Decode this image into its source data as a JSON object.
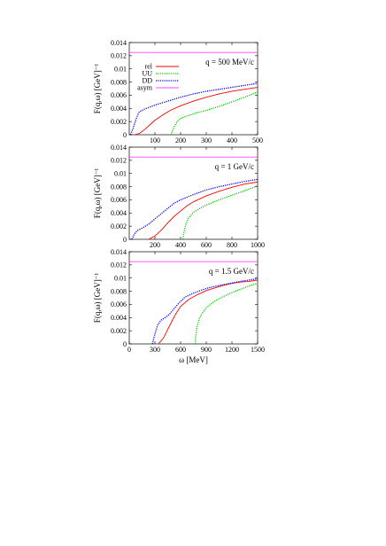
{
  "chart_data": [
    {
      "type": "line",
      "panel_label": "q = 500 MeV/c",
      "xlabel": "",
      "ylabel": "F(q,ω) [GeV]⁻¹",
      "xlim": [
        0,
        500
      ],
      "ylim": [
        0,
        0.014
      ],
      "xticks": [
        100,
        200,
        300,
        400,
        500
      ],
      "yticks": [
        "0",
        "0.002",
        "0.004",
        "0.006",
        "0.008",
        "0.01",
        "0.012",
        "0.014"
      ],
      "legend": "top-left",
      "grid": false,
      "series": [
        {
          "name": "rel",
          "color": "#ff0000",
          "style": "solid",
          "points": [
            [
              20,
              0
            ],
            [
              40,
              0.0002
            ],
            [
              60,
              0.0008
            ],
            [
              80,
              0.0015
            ],
            [
              100,
              0.0022
            ],
            [
              130,
              0.003
            ],
            [
              160,
              0.0037
            ],
            [
              200,
              0.0044
            ],
            [
              250,
              0.0051
            ],
            [
              300,
              0.0057
            ],
            [
              350,
              0.0062
            ],
            [
              400,
              0.0066
            ],
            [
              450,
              0.0069
            ],
            [
              500,
              0.0072
            ]
          ]
        },
        {
          "name": "UU",
          "color": "#00cc00",
          "style": "dotted",
          "points": [
            [
              163,
              0
            ],
            [
              168,
              0.0006
            ],
            [
              175,
              0.0012
            ],
            [
              185,
              0.0019
            ],
            [
              200,
              0.0025
            ],
            [
              230,
              0.0029
            ],
            [
              260,
              0.0033
            ],
            [
              300,
              0.0037
            ],
            [
              350,
              0.0043
            ],
            [
              400,
              0.005
            ],
            [
              450,
              0.0057
            ],
            [
              500,
              0.0065
            ]
          ]
        },
        {
          "name": "DD",
          "color": "#0000ff",
          "style": "dotted",
          "points": [
            [
              5,
              0
            ],
            [
              15,
              0.001
            ],
            [
              25,
              0.0022
            ],
            [
              35,
              0.0032
            ],
            [
              40,
              0.0035
            ],
            [
              60,
              0.0039
            ],
            [
              100,
              0.0045
            ],
            [
              150,
              0.0051
            ],
            [
              200,
              0.0057
            ],
            [
              250,
              0.0062
            ],
            [
              300,
              0.0066
            ],
            [
              350,
              0.0069
            ],
            [
              400,
              0.0072
            ],
            [
              450,
              0.0075
            ],
            [
              500,
              0.0078
            ]
          ]
        },
        {
          "name": "asym",
          "color": "#ff44ff",
          "style": "solid",
          "points": [
            [
              0,
              0.0125
            ],
            [
              500,
              0.0125
            ]
          ]
        }
      ]
    },
    {
      "type": "line",
      "panel_label": "q = 1 GeV/c",
      "xlabel": "",
      "ylabel": "F(q,ω) [GeV]⁻¹",
      "xlim": [
        0,
        1000
      ],
      "ylim": [
        0,
        0.014
      ],
      "xticks": [
        200,
        400,
        600,
        800,
        1000
      ],
      "yticks": [
        "0",
        "0.002",
        "0.004",
        "0.006",
        "0.008",
        "0.01",
        "0.012",
        "0.014"
      ],
      "grid": false,
      "series": [
        {
          "name": "rel",
          "color": "#ff0000",
          "style": "solid",
          "points": [
            [
              150,
              0
            ],
            [
              200,
              0.0005
            ],
            [
              250,
              0.0014
            ],
            [
              300,
              0.0025
            ],
            [
              350,
              0.0035
            ],
            [
              400,
              0.0043
            ],
            [
              450,
              0.0051
            ],
            [
              500,
              0.0057
            ],
            [
              600,
              0.0066
            ],
            [
              700,
              0.0073
            ],
            [
              800,
              0.0079
            ],
            [
              900,
              0.0084
            ],
            [
              1000,
              0.0087
            ]
          ]
        },
        {
          "name": "UU",
          "color": "#00cc00",
          "style": "dotted",
          "points": [
            [
              420,
              0
            ],
            [
              425,
              0.001
            ],
            [
              440,
              0.0022
            ],
            [
              460,
              0.0032
            ],
            [
              500,
              0.0041
            ],
            [
              550,
              0.0047
            ],
            [
              600,
              0.0052
            ],
            [
              650,
              0.0056
            ],
            [
              700,
              0.006
            ],
            [
              800,
              0.0067
            ],
            [
              900,
              0.0074
            ],
            [
              1000,
              0.0081
            ]
          ]
        },
        {
          "name": "DD",
          "color": "#0000ff",
          "style": "dotted",
          "points": [
            [
              20,
              0
            ],
            [
              40,
              0.0008
            ],
            [
              60,
              0.0013
            ],
            [
              80,
              0.0015
            ],
            [
              100,
              0.0017
            ],
            [
              150,
              0.0023
            ],
            [
              200,
              0.0031
            ],
            [
              250,
              0.0039
            ],
            [
              300,
              0.0047
            ],
            [
              350,
              0.0055
            ],
            [
              400,
              0.006
            ],
            [
              500,
              0.0068
            ],
            [
              600,
              0.0075
            ],
            [
              700,
              0.008
            ],
            [
              800,
              0.0084
            ],
            [
              900,
              0.0088
            ],
            [
              1000,
              0.0091
            ]
          ]
        },
        {
          "name": "asym",
          "color": "#ff44ff",
          "style": "solid",
          "points": [
            [
              0,
              0.0125
            ],
            [
              1000,
              0.0125
            ]
          ]
        }
      ]
    },
    {
      "type": "line",
      "panel_label": "q = 1.5 GeV/c",
      "xlabel": "ω [MeV]",
      "ylabel": "F(q,ω) [GeV]⁻¹",
      "xlim": [
        0,
        1500
      ],
      "ylim": [
        0,
        0.014
      ],
      "xticks": [
        0,
        300,
        600,
        900,
        1200,
        1500
      ],
      "yticks": [
        "0",
        "0.002",
        "0.004",
        "0.006",
        "0.008",
        "0.01",
        "0.012",
        "0.014"
      ],
      "grid": false,
      "series": [
        {
          "name": "rel",
          "color": "#ff0000",
          "style": "solid",
          "points": [
            [
              340,
              0
            ],
            [
              400,
              0.0009
            ],
            [
              450,
              0.0022
            ],
            [
              500,
              0.0035
            ],
            [
              550,
              0.0047
            ],
            [
              600,
              0.0057
            ],
            [
              700,
              0.0068
            ],
            [
              800,
              0.0075
            ],
            [
              900,
              0.0081
            ],
            [
              1000,
              0.0085
            ],
            [
              1100,
              0.0089
            ],
            [
              1200,
              0.0092
            ],
            [
              1300,
              0.0094
            ],
            [
              1400,
              0.0095
            ],
            [
              1500,
              0.0097
            ]
          ]
        },
        {
          "name": "UU",
          "color": "#00cc00",
          "style": "dotted",
          "points": [
            [
              770,
              0
            ],
            [
              775,
              0.001
            ],
            [
              790,
              0.0025
            ],
            [
              820,
              0.0039
            ],
            [
              860,
              0.0048
            ],
            [
              900,
              0.0055
            ],
            [
              1000,
              0.0065
            ],
            [
              1100,
              0.0072
            ],
            [
              1200,
              0.0078
            ],
            [
              1300,
              0.0083
            ],
            [
              1400,
              0.0088
            ],
            [
              1500,
              0.0092
            ]
          ]
        },
        {
          "name": "DD",
          "color": "#0000ff",
          "style": "dotted",
          "points": [
            [
              270,
              0
            ],
            [
              300,
              0.0015
            ],
            [
              330,
              0.0028
            ],
            [
              370,
              0.0036
            ],
            [
              420,
              0.004
            ],
            [
              470,
              0.0045
            ],
            [
              520,
              0.0053
            ],
            [
              580,
              0.0062
            ],
            [
              650,
              0.0071
            ],
            [
              750,
              0.0077
            ],
            [
              850,
              0.0082
            ],
            [
              950,
              0.0086
            ],
            [
              1100,
              0.009
            ],
            [
              1300,
              0.0095
            ],
            [
              1500,
              0.0099
            ]
          ]
        },
        {
          "name": "asym",
          "color": "#ff44ff",
          "style": "solid",
          "points": [
            [
              0,
              0.0125
            ],
            [
              1500,
              0.0125
            ]
          ]
        }
      ]
    }
  ]
}
